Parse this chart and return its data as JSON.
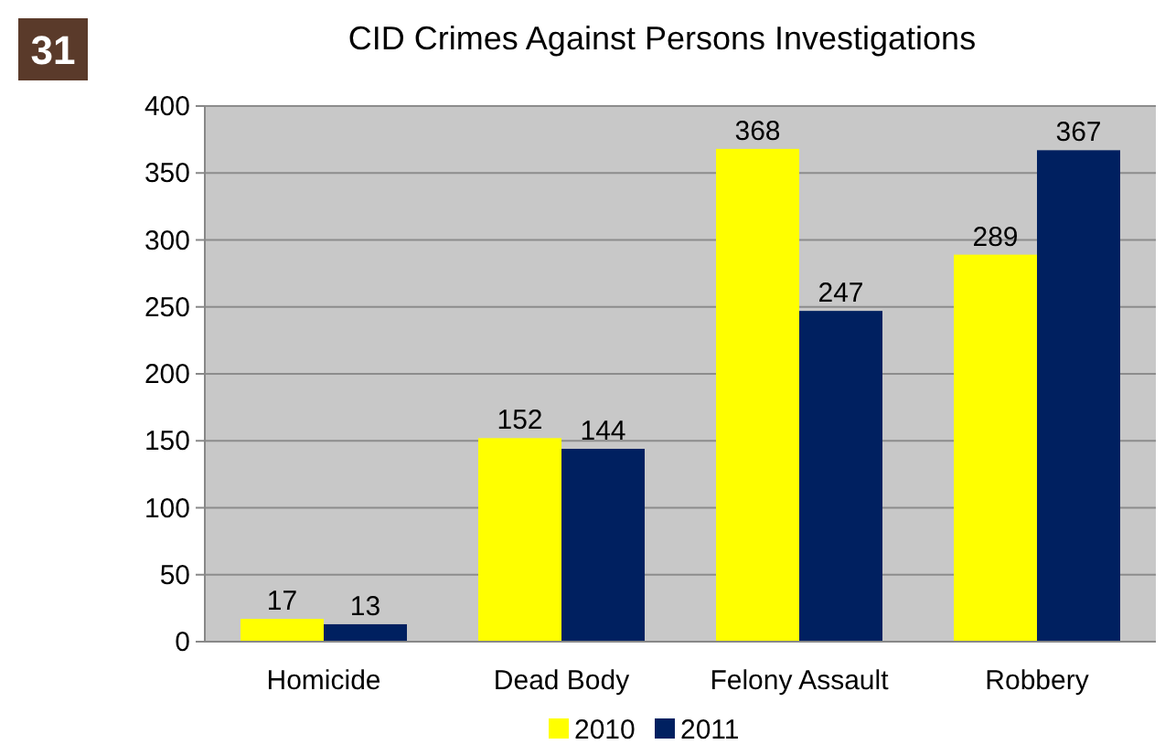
{
  "chart_data": {
    "type": "bar",
    "title": "CID Crimes Against Persons Investigations",
    "annotations": [
      "31"
    ],
    "categories": [
      "Homicide",
      "Dead Body",
      "Felony Assault",
      "Robbery"
    ],
    "series": [
      {
        "name": "2010",
        "color": "#ffff00",
        "values": [
          17,
          152,
          368,
          289
        ]
      },
      {
        "name": "2011",
        "color": "#002060",
        "values": [
          13,
          144,
          247,
          367
        ]
      }
    ],
    "ylim": [
      0,
      400
    ],
    "yticks": [
      0,
      50,
      100,
      150,
      200,
      250,
      300,
      350,
      400
    ],
    "grid": "y",
    "legend": "bottom",
    "data_labels": true
  }
}
